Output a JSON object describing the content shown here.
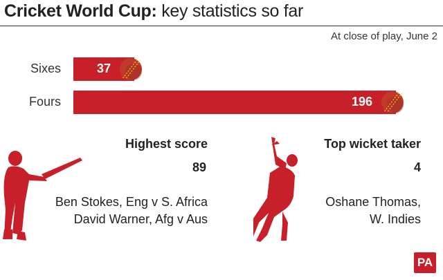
{
  "header": {
    "title_bold": "Cricket World Cup:",
    "title_rest": " key statistics so far",
    "subtitle": "At close of play, June 2"
  },
  "chart_data": {
    "type": "bar",
    "orientation": "horizontal",
    "categories": [
      "Sixes",
      "Fours"
    ],
    "values": [
      37,
      196
    ],
    "data_labels": [
      "37",
      "196"
    ],
    "colors": {
      "bar": "#c8202a",
      "ball": "#c0392b",
      "seam": "#f1c40f"
    }
  },
  "highest_score": {
    "heading": "Highest score",
    "value": "89",
    "names": [
      "Ben Stokes, Eng v S. Africa",
      "David Warner, Afg v Aus"
    ]
  },
  "top_wicket_taker": {
    "heading": "Top wicket taker",
    "value": "4",
    "names": [
      "Oshane Thomas,",
      "W. Indies"
    ]
  },
  "logo": {
    "text": "PA"
  }
}
